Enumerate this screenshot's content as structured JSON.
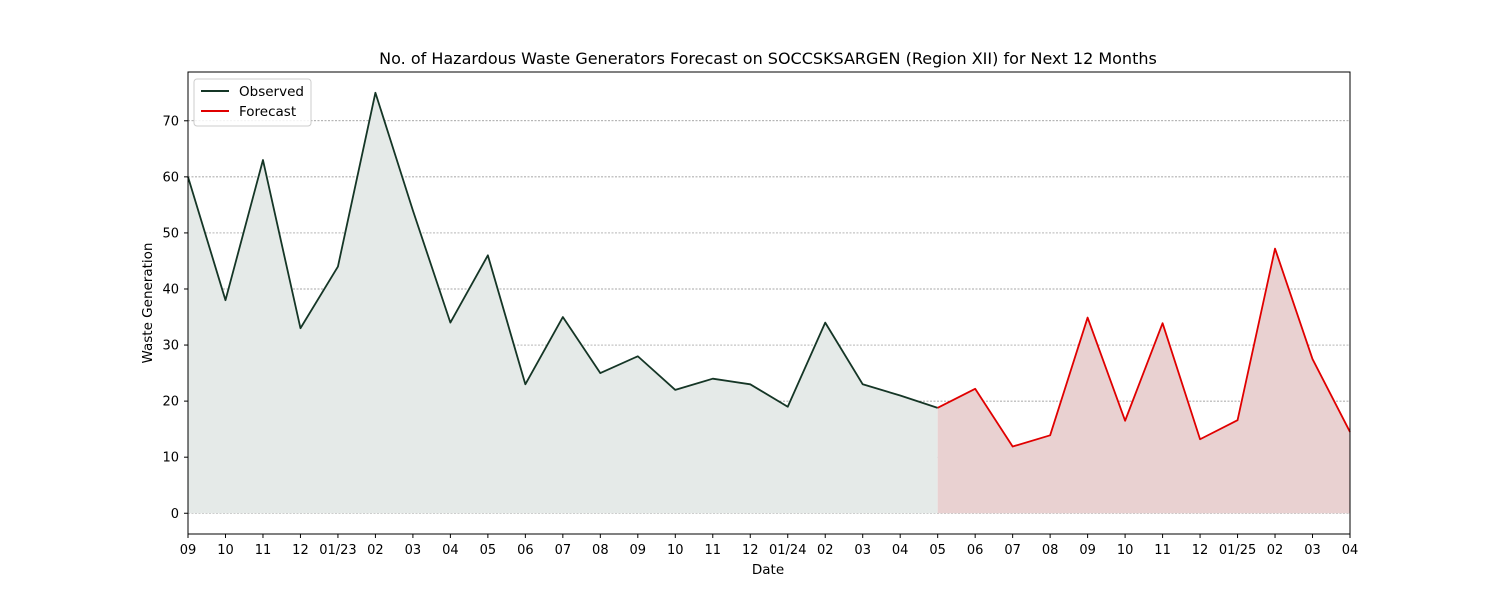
{
  "chart_data": {
    "type": "line",
    "title": "No. of Hazardous Waste Generators Forecast on SOCCSKSARGEN (Region XII) for Next 12 Months",
    "xlabel": "Date",
    "ylabel": "Waste Generation",
    "x_tick_labels": [
      "09",
      "10",
      "11",
      "12",
      "01/23",
      "02",
      "03",
      "04",
      "05",
      "06",
      "07",
      "08",
      "09",
      "10",
      "11",
      "12",
      "01/24",
      "02",
      "03",
      "04",
      "05",
      "06",
      "07",
      "08",
      "09",
      "10",
      "11",
      "12",
      "01/25",
      "02",
      "03",
      "04"
    ],
    "yticks": [
      0,
      10,
      20,
      30,
      40,
      50,
      60,
      70
    ],
    "ylim": [
      -3.7,
      78.7
    ],
    "grid": "horizontal, dashed",
    "legend": {
      "position": "top-left"
    },
    "series": [
      {
        "name": "Observed",
        "color": "#153626",
        "fill_color": "#e5eae8",
        "x_index": [
          0,
          1,
          2,
          3,
          4,
          5,
          6,
          7,
          8,
          9,
          10,
          11,
          12,
          13,
          14,
          15,
          16,
          17,
          18,
          19,
          20
        ],
        "values": [
          60,
          38,
          63,
          33,
          44,
          75,
          54,
          34,
          46,
          23,
          35,
          25,
          28,
          22,
          24,
          23,
          19,
          34,
          23,
          21,
          18.8
        ]
      },
      {
        "name": "Forecast",
        "color": "#e00000",
        "fill_color": "#e9d1d1",
        "x_index": [
          20,
          21,
          22,
          23,
          24,
          25,
          26,
          27,
          28,
          29,
          30,
          31
        ],
        "values": [
          18.8,
          22.2,
          11.9,
          13.9,
          34.9,
          16.5,
          33.9,
          13.2,
          16.6,
          47.2,
          27.5,
          14.5
        ]
      }
    ]
  }
}
